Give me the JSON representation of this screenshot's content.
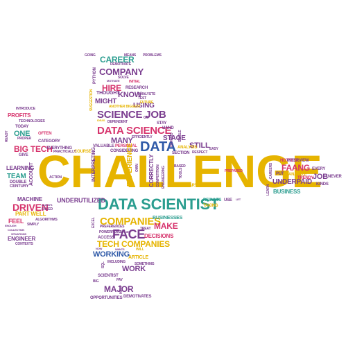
{
  "palette": {
    "gold": "#e6b400",
    "purple": "#7a3d8f",
    "teal": "#2a9d8f",
    "red": "#d6336c",
    "blue": "#2f5aa8",
    "green": "#3f9a3a",
    "orange": "#e8862b"
  },
  "words": [
    {
      "text": "CHALLENGE",
      "color": "gold"
    },
    {
      "text": "DATA SCIENTIST",
      "color": "teal"
    },
    {
      "text": "DATA SCIENCE",
      "color": "red"
    },
    {
      "text": "DATA",
      "color": "blue"
    },
    {
      "text": "SCIENCE JOB",
      "color": "purple"
    },
    {
      "text": "COMPANIES",
      "color": "gold"
    },
    {
      "text": "FACE",
      "color": "purple"
    },
    {
      "text": "TECH COMPANIES",
      "color": "gold"
    },
    {
      "text": "COMPANY",
      "color": "purple"
    },
    {
      "text": "CAREER",
      "color": "teal"
    },
    {
      "text": "HIRE",
      "color": "red"
    },
    {
      "text": "KNOW",
      "color": "purple"
    },
    {
      "text": "MIGHT",
      "color": "purple"
    },
    {
      "text": "USING",
      "color": "purple"
    },
    {
      "text": "MANY",
      "color": "purple"
    },
    {
      "text": "BIG TECH",
      "color": "red"
    },
    {
      "text": "DRIVEN",
      "color": "red"
    },
    {
      "text": "ONE",
      "color": "teal"
    },
    {
      "text": "PROFITS",
      "color": "red"
    },
    {
      "text": "TEAM",
      "color": "teal"
    },
    {
      "text": "LEARNING",
      "color": "purple"
    },
    {
      "text": "MACHINE",
      "color": "purple"
    },
    {
      "text": "PART WELL",
      "color": "gold"
    },
    {
      "text": "FEEL",
      "color": "red"
    },
    {
      "text": "ENGINEER",
      "color": "purple"
    },
    {
      "text": "UNDERUTILIZED",
      "color": "purple"
    },
    {
      "text": "MAKE",
      "color": "red"
    },
    {
      "text": "WORKING",
      "color": "blue"
    },
    {
      "text": "WORK",
      "color": "purple"
    },
    {
      "text": "MAJOR",
      "color": "purple"
    },
    {
      "text": "STILL",
      "color": "purple"
    },
    {
      "text": "STAGE",
      "color": "purple"
    },
    {
      "text": "UNDERPAID",
      "color": "purple"
    },
    {
      "text": "FAANG",
      "color": "red"
    },
    {
      "text": "JOB",
      "color": "purple"
    },
    {
      "text": "BUSINESS",
      "color": "teal"
    },
    {
      "text": "BUSINESSES",
      "color": "teal"
    },
    {
      "text": "DECISIONS",
      "color": "red"
    },
    {
      "text": "ARTICLE",
      "color": "gold"
    },
    {
      "text": "SCIENTIST",
      "color": "purple"
    },
    {
      "text": "OPPORTUNITIES",
      "color": "purple"
    },
    {
      "text": "DEMOTIVATES",
      "color": "purple"
    },
    {
      "text": "HOTTEST",
      "color": "red"
    },
    {
      "text": "PUT",
      "color": "purple"
    },
    {
      "text": "EVERY",
      "color": "purple"
    },
    {
      "text": "NEVER",
      "color": "purple"
    },
    {
      "text": "KINDS",
      "color": "purple"
    },
    {
      "text": "TRENDY",
      "color": "red"
    },
    {
      "text": "ANALYZE",
      "color": "gold"
    },
    {
      "text": "INTERVIEW",
      "color": "purple"
    },
    {
      "text": "PREPARED",
      "color": "red"
    },
    {
      "text": "SUMMARY",
      "color": "gold"
    },
    {
      "text": "BASED",
      "color": "purple"
    },
    {
      "text": "RESULTS",
      "color": "teal"
    },
    {
      "text": "TAKING",
      "color": "gold"
    },
    {
      "text": "USE",
      "color": "purple"
    },
    {
      "text": "LET",
      "color": "purple"
    },
    {
      "text": "SECTION",
      "color": "purple"
    },
    {
      "text": "RESPECT",
      "color": "purple"
    },
    {
      "text": "ANALYSIS",
      "color": "gold"
    },
    {
      "text": "EASY",
      "color": "purple"
    },
    {
      "text": "HAND",
      "color": "purple"
    },
    {
      "text": "STAY",
      "color": "purple"
    },
    {
      "text": "GO",
      "color": "purple"
    },
    {
      "text": "DEPENDENT",
      "color": "purple"
    },
    {
      "text": "ANOTHER BIGGEST",
      "color": "gold"
    },
    {
      "text": "TEST",
      "color": "purple"
    },
    {
      "text": "ANALYSTS",
      "color": "purple"
    },
    {
      "text": "FUTURE",
      "color": "gold"
    },
    {
      "text": "RESEARCH",
      "color": "purple"
    },
    {
      "text": "THOUGHT",
      "color": "purple"
    },
    {
      "text": "INITIAL",
      "color": "red"
    },
    {
      "text": "SOLVE",
      "color": "purple"
    },
    {
      "text": "MOTIVATE",
      "color": "purple"
    },
    {
      "text": "DEMOTIVATE",
      "color": "purple"
    },
    {
      "text": "GOING",
      "color": "purple"
    },
    {
      "text": "MEANS",
      "color": "purple"
    },
    {
      "text": "PROBLEMS",
      "color": "purple"
    },
    {
      "text": "IDEAS",
      "color": "gold"
    },
    {
      "text": "VALUABLE",
      "color": "purple"
    },
    {
      "text": "PERSONAL",
      "color": "red"
    },
    {
      "text": "EFFICIENTLY",
      "color": "purple"
    },
    {
      "text": "CONSIDERING",
      "color": "purple"
    },
    {
      "text": "COURSE",
      "color": "gold"
    },
    {
      "text": "PRACTICALLY",
      "color": "purple"
    },
    {
      "text": "EVERYTHING",
      "color": "purple"
    },
    {
      "text": "GIVE",
      "color": "purple"
    },
    {
      "text": "PROPER",
      "color": "purple"
    },
    {
      "text": "CATEGORY",
      "color": "purple"
    },
    {
      "text": "OFTEN",
      "color": "red"
    },
    {
      "text": "TODAY",
      "color": "purple"
    },
    {
      "text": "TECHNOLOGIES",
      "color": "purple"
    },
    {
      "text": "INTRODUCE",
      "color": "purple"
    },
    {
      "text": "READY",
      "color": "purple"
    },
    {
      "text": "ACCOUNT",
      "color": "purple"
    },
    {
      "text": "DOUBLE",
      "color": "purple"
    },
    {
      "text": "CENTURY",
      "color": "purple"
    },
    {
      "text": "ACTION",
      "color": "purple"
    },
    {
      "text": "FACED",
      "color": "purple"
    },
    {
      "text": "ALWAYS",
      "color": "purple"
    },
    {
      "text": "ALGORITHMS",
      "color": "purple"
    },
    {
      "text": "SIMPLY",
      "color": "purple"
    },
    {
      "text": "ENOUGH",
      "color": "purple"
    },
    {
      "text": "COLLECTION",
      "color": "purple"
    },
    {
      "text": "SITUATIONS",
      "color": "purple"
    },
    {
      "text": "CONTEXTS",
      "color": "purple"
    },
    {
      "text": "EXCEL",
      "color": "purple"
    },
    {
      "text": "POWERPOINT",
      "color": "purple"
    },
    {
      "text": "APPLIED",
      "color": "purple"
    },
    {
      "text": "PREFERENCES",
      "color": "purple"
    },
    {
      "text": "TREAT",
      "color": "purple"
    },
    {
      "text": "ACCESS",
      "color": "purple"
    },
    {
      "text": "WILL",
      "color": "gold"
    },
    {
      "text": "NOW",
      "color": "purple"
    },
    {
      "text": "WANTS",
      "color": "purple"
    },
    {
      "text": "INCLUDING",
      "color": "purple"
    },
    {
      "text": "SOMETHING",
      "color": "purple"
    },
    {
      "text": "SQL",
      "color": "purple"
    },
    {
      "text": "BIG",
      "color": "purple"
    },
    {
      "text": "PAY",
      "color": "purple"
    },
    {
      "text": "HELP",
      "color": "purple"
    },
    {
      "text": "PYTHON",
      "color": "purple"
    },
    {
      "text": "SUGGESTION",
      "color": "gold"
    },
    {
      "text": "INTERPRETING",
      "color": "purple"
    },
    {
      "text": "EXPERIENCE",
      "color": "gold"
    },
    {
      "text": "CORRECTLY",
      "color": "purple"
    },
    {
      "text": "COMPETITION",
      "color": "purple"
    },
    {
      "text": "ENGINEERING",
      "color": "purple"
    },
    {
      "text": "OWN",
      "color": "purple"
    },
    {
      "text": "SINGLE",
      "color": "purple"
    },
    {
      "text": "LEARN",
      "color": "purple"
    },
    {
      "text": "CAREERS",
      "color": "purple"
    },
    {
      "text": "DEFINED",
      "color": "purple"
    },
    {
      "text": "TOOLS",
      "color": "purple"
    }
  ]
}
